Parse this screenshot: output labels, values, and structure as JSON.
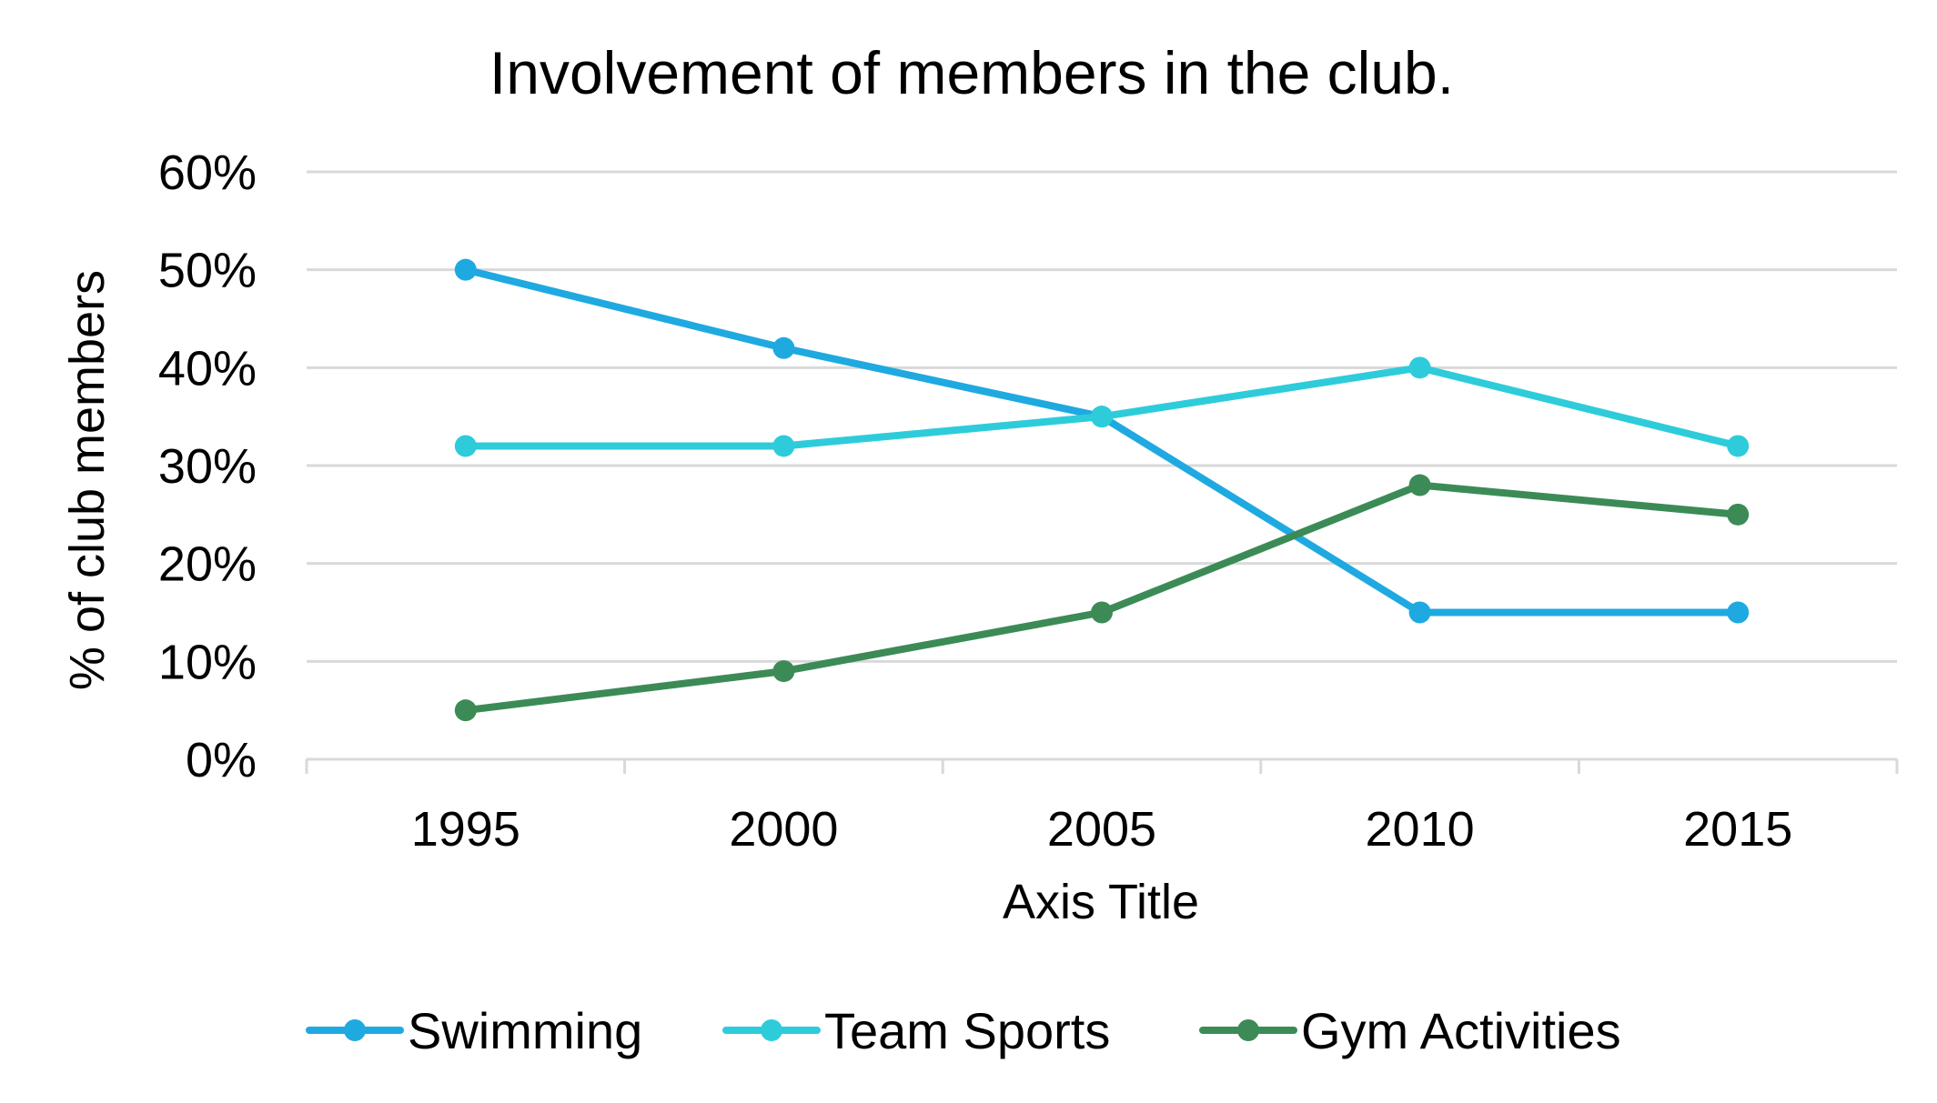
{
  "chart_data": {
    "type": "line",
    "title": "Involvement of members in the club.",
    "xlabel": "Axis Title",
    "ylabel": "% of club members",
    "categories": [
      "1995",
      "2000",
      "2005",
      "2010",
      "2015"
    ],
    "ylim": [
      0,
      60
    ],
    "y_ticks": [
      0,
      10,
      20,
      30,
      40,
      50,
      60
    ],
    "y_tick_labels": [
      "0%",
      "10%",
      "20%",
      "30%",
      "40%",
      "50%",
      "60%"
    ],
    "grid": true,
    "legend_position": "bottom",
    "series": [
      {
        "name": "Swimming",
        "color": "#1FA9E1",
        "values": [
          50,
          42,
          35,
          15,
          15
        ]
      },
      {
        "name": "Team Sports",
        "color": "#2ECCDA",
        "values": [
          32,
          32,
          35,
          40,
          32
        ]
      },
      {
        "name": "Gym Activities",
        "color": "#3C8B57",
        "values": [
          5,
          9,
          15,
          28,
          25
        ]
      }
    ]
  }
}
